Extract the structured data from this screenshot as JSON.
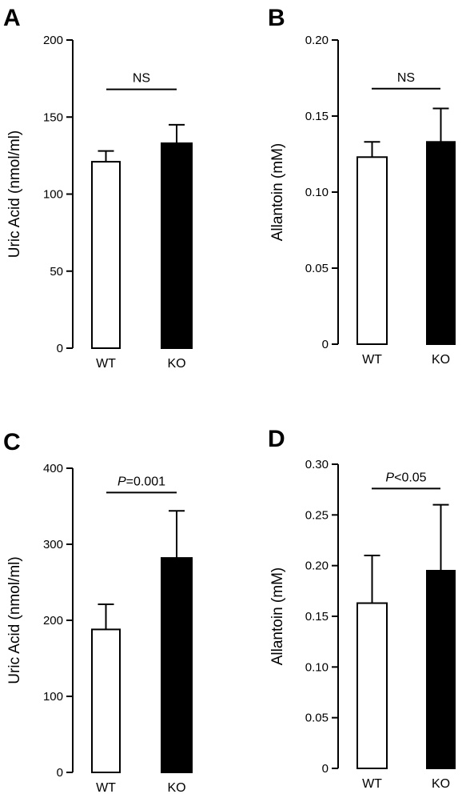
{
  "chart_data": [
    {
      "panel": "A",
      "type": "bar",
      "categories": [
        "WT",
        "KO"
      ],
      "values": [
        121,
        133
      ],
      "errors": [
        7,
        12
      ],
      "bar_colors": [
        "#ffffff",
        "#000000"
      ],
      "ylabel": "Uric Acid (nmol/ml)",
      "ylim": [
        0,
        200
      ],
      "yticks": [
        0,
        50,
        100,
        150,
        200
      ],
      "ytick_labels": [
        "0",
        "50",
        "100",
        "150",
        "200"
      ],
      "significance": {
        "prefix": "",
        "text": "NS",
        "y": 168
      }
    },
    {
      "panel": "B",
      "type": "bar",
      "categories": [
        "WT",
        "KO"
      ],
      "values": [
        0.123,
        0.133
      ],
      "errors": [
        0.01,
        0.022
      ],
      "bar_colors": [
        "#ffffff",
        "#000000"
      ],
      "ylabel": "Allantoin (mM)",
      "ylim": [
        0,
        0.2
      ],
      "yticks": [
        0,
        0.05,
        0.1,
        0.15,
        0.2
      ],
      "ytick_labels": [
        "0",
        "0.05",
        "0.10",
        "0.15",
        "0.20"
      ],
      "significance": {
        "prefix": "",
        "text": "NS",
        "y": 0.168
      }
    },
    {
      "panel": "C",
      "type": "bar",
      "categories": [
        "WT",
        "KO"
      ],
      "values": [
        188,
        282
      ],
      "errors": [
        33,
        62
      ],
      "bar_colors": [
        "#ffffff",
        "#000000"
      ],
      "ylabel": "Uric Acid (nmol/ml)",
      "ylim": [
        0,
        400
      ],
      "yticks": [
        0,
        100,
        200,
        300,
        400
      ],
      "ytick_labels": [
        "0",
        "100",
        "200",
        "300",
        "400"
      ],
      "significance": {
        "prefix": "P",
        "text": "=0.001",
        "y": 368
      }
    },
    {
      "panel": "D",
      "type": "bar",
      "categories": [
        "WT",
        "KO"
      ],
      "values": [
        0.163,
        0.195
      ],
      "errors": [
        0.047,
        0.065
      ],
      "bar_colors": [
        "#ffffff",
        "#000000"
      ],
      "ylabel": "Allantoin (mM)",
      "ylim": [
        0,
        0.3
      ],
      "yticks": [
        0,
        0.05,
        0.1,
        0.15,
        0.2,
        0.25,
        0.3
      ],
      "ytick_labels": [
        "0",
        "0.05",
        "0.10",
        "0.15",
        "0.20",
        "0.25",
        "0.30"
      ],
      "significance": {
        "prefix": "P",
        "text": "<0.05",
        "y": 0.276
      }
    }
  ]
}
